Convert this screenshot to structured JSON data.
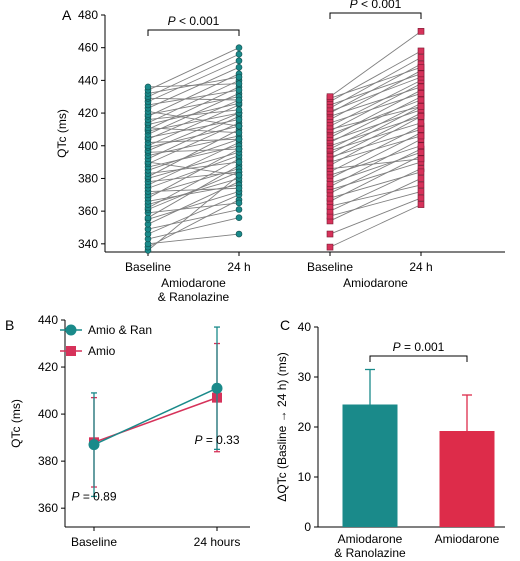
{
  "figure": {
    "panel_labels": [
      "A",
      "B",
      "C"
    ]
  },
  "chart_data": [
    {
      "id": "A",
      "type": "scatter",
      "subtype": "paired-slope",
      "ylabel": "QTc (ms)",
      "ylim": [
        335,
        480
      ],
      "yticks": [
        340,
        360,
        380,
        400,
        420,
        440,
        460,
        480
      ],
      "x_tick_labels": [
        "Baseline",
        "24 h",
        "Baseline",
        "24 h"
      ],
      "group_labels": [
        [
          "Amiodarone",
          "& Ranolazine"
        ],
        [
          "Amiodarone"
        ]
      ],
      "point_color_group1": "#1a8a8a",
      "point_color_group2": "#d6325a",
      "line_color": "#808080",
      "groups": [
        {
          "name": "Amiodarone & Ranolazine",
          "annotation": "P < 0.001",
          "pairs": [
            [
              336,
              382
            ],
            [
              338,
              367
            ],
            [
              340,
              346
            ],
            [
              343,
              356
            ],
            [
              346,
              370
            ],
            [
              349,
              361
            ],
            [
              352,
              378
            ],
            [
              355,
              372
            ],
            [
              356,
              388
            ],
            [
              359,
              365
            ],
            [
              361,
              384
            ],
            [
              362,
              392
            ],
            [
              364,
              380
            ],
            [
              366,
              376
            ],
            [
              368,
              398
            ],
            [
              370,
              386
            ],
            [
              372,
              374
            ],
            [
              374,
              394
            ],
            [
              376,
              402
            ],
            [
              378,
              384
            ],
            [
              380,
              396
            ],
            [
              381,
              410
            ],
            [
              383,
              390
            ],
            [
              385,
              404
            ],
            [
              387,
              400
            ],
            [
              389,
              414
            ],
            [
              390,
              382
            ],
            [
              392,
              418
            ],
            [
              394,
              406
            ],
            [
              396,
              398
            ],
            [
              397,
              420
            ],
            [
              399,
              412
            ],
            [
              400,
              425
            ],
            [
              402,
              404
            ],
            [
              404,
              428
            ],
            [
              405,
              416
            ],
            [
              407,
              432
            ],
            [
              409,
              420
            ],
            [
              410,
              436
            ],
            [
              411,
              408
            ],
            [
              413,
              426
            ],
            [
              414,
              440
            ],
            [
              416,
              422
            ],
            [
              418,
              444
            ],
            [
              419,
              430
            ],
            [
              421,
              412
            ],
            [
              423,
              448
            ],
            [
              425,
              434
            ],
            [
              427,
              452
            ],
            [
              429,
              428
            ],
            [
              430,
              456
            ],
            [
              432,
              442
            ],
            [
              434,
              460
            ],
            [
              436,
              438
            ]
          ]
        },
        {
          "name": "Amiodarone",
          "annotation": "P < 0.001",
          "pairs": [
            [
              338,
              364
            ],
            [
              346,
              368
            ],
            [
              354,
              380
            ],
            [
              357,
              372
            ],
            [
              360,
              386
            ],
            [
              363,
              376
            ],
            [
              366,
              394
            ],
            [
              368,
              384
            ],
            [
              371,
              398
            ],
            [
              373,
              390
            ],
            [
              375,
              404
            ],
            [
              377,
              396
            ],
            [
              380,
              408
            ],
            [
              382,
              400
            ],
            [
              384,
              412
            ],
            [
              386,
              392
            ],
            [
              388,
              418
            ],
            [
              390,
              406
            ],
            [
              392,
              420
            ],
            [
              393,
              410
            ],
            [
              395,
              424
            ],
            [
              397,
              414
            ],
            [
              398,
              426
            ],
            [
              400,
              418
            ],
            [
              402,
              430
            ],
            [
              403,
              422
            ],
            [
              405,
              434
            ],
            [
              407,
              428
            ],
            [
              409,
              438
            ],
            [
              410,
              424
            ],
            [
              412,
              440
            ],
            [
              414,
              432
            ],
            [
              416,
              446
            ],
            [
              418,
              436
            ],
            [
              420,
              450
            ],
            [
              421,
              442
            ],
            [
              423,
              454
            ],
            [
              425,
              444
            ],
            [
              427,
              458
            ],
            [
              429,
              448
            ],
            [
              430,
              470
            ]
          ]
        }
      ]
    },
    {
      "id": "B",
      "type": "line",
      "ylabel": "QTc (ms)",
      "ylim": [
        352,
        440
      ],
      "yticks": [
        360,
        380,
        400,
        420,
        440
      ],
      "categories": [
        "Baseline",
        "24 hours"
      ],
      "series": [
        {
          "name": "Amio & Ran",
          "marker": "circle",
          "color": "#1a8a8a",
          "values": [
            387,
            411
          ],
          "error": [
            22,
            26
          ]
        },
        {
          "name": "Amio",
          "marker": "square",
          "color": "#d6325a",
          "values": [
            388,
            407
          ],
          "error": [
            19,
            23
          ]
        }
      ],
      "annotations": [
        {
          "text": "P = 0.89",
          "category": "Baseline",
          "y": 365
        },
        {
          "text": "P = 0.33",
          "category": "24 hours",
          "y": 389
        }
      ],
      "legend_position": "top-left"
    },
    {
      "id": "C",
      "type": "bar",
      "ylabel": "ΔQTc (Basline → 24 h) (ms)",
      "ylim": [
        0,
        40
      ],
      "yticks": [
        0,
        10,
        20,
        30,
        40
      ],
      "categories": [
        [
          "Amiodarone",
          "& Ranolazine"
        ],
        [
          "Amiodarone"
        ]
      ],
      "values": [
        24.5,
        19.2
      ],
      "error": [
        7.0,
        7.2
      ],
      "colors": [
        "#1a8a8a",
        "#dd2c4a"
      ],
      "annotation": "P = 0.001"
    }
  ]
}
